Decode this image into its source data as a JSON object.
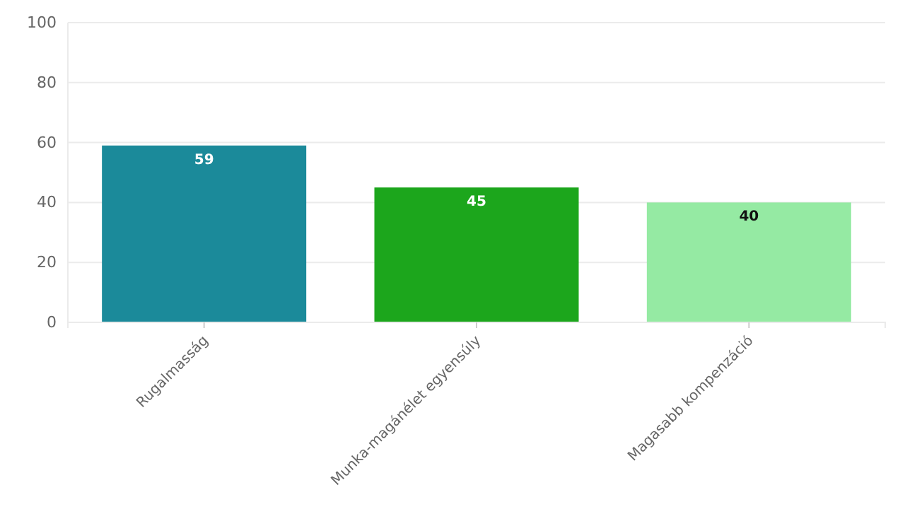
{
  "chart_data": {
    "type": "bar",
    "categories": [
      "Rugalmasság",
      "Munka-magánélet egyensúly",
      "Magasabb kompenzáció"
    ],
    "values": [
      59,
      45,
      40
    ],
    "colors": [
      "#1b8a9a",
      "#1ca61c",
      "#95eaa3"
    ],
    "ylim": [
      0,
      100
    ],
    "yticks": [
      0,
      20,
      40,
      60,
      80,
      100
    ],
    "grid": "y",
    "data_labels": true
  }
}
